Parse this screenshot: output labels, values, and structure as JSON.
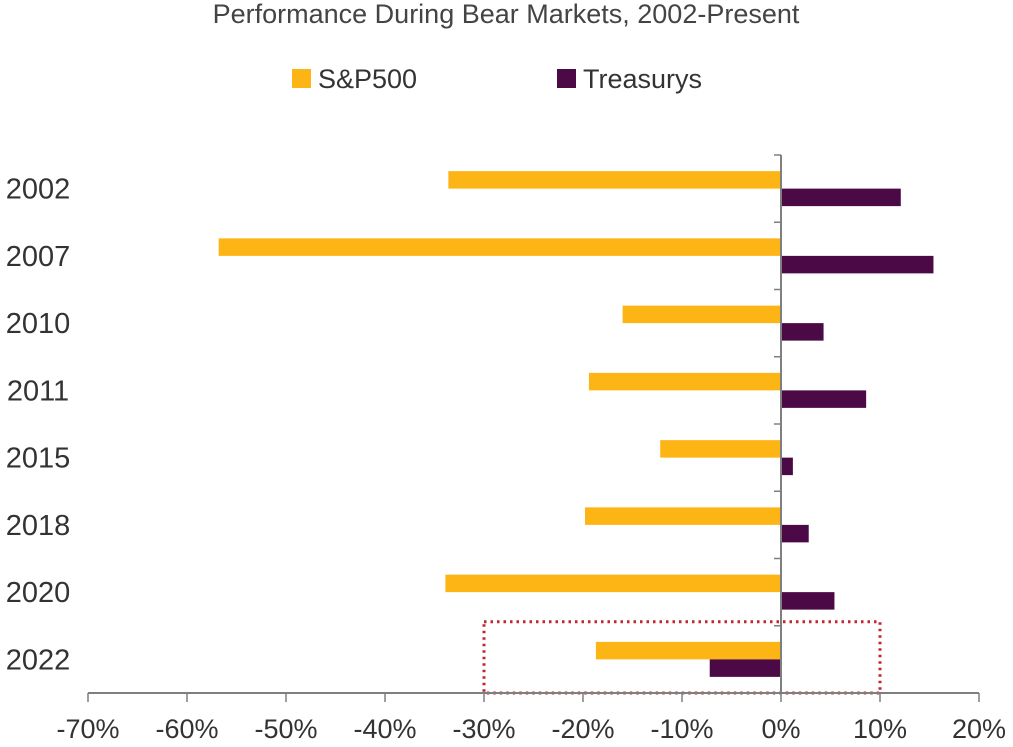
{
  "chart_data": {
    "type": "bar",
    "orientation": "horizontal",
    "title": "Performance During Bear Markets, 2002-Present",
    "categories": [
      "2002",
      "2007",
      "2010",
      "2011",
      "2015",
      "2018",
      "2020",
      "2022"
    ],
    "series": [
      {
        "name": "S&P500",
        "color": "#FDB515",
        "values": [
          -33.6,
          -56.8,
          -16.0,
          -19.4,
          -12.2,
          -19.8,
          -33.9,
          -18.7
        ]
      },
      {
        "name": "Treasurys",
        "color": "#4B0A45",
        "values": [
          12.1,
          15.4,
          4.3,
          8.6,
          1.2,
          2.8,
          5.4,
          -7.2
        ]
      }
    ],
    "x_ticks": [
      "-70%",
      "-60%",
      "-50%",
      "-40%",
      "-30%",
      "-20%",
      "-10%",
      "0%",
      "10%",
      "20%"
    ],
    "xlim": [
      -70,
      20
    ],
    "legend_position": "top",
    "grid": false,
    "highlight_box": {
      "category": "2022",
      "x_range": [
        -30,
        10
      ],
      "color": "#C0272D",
      "style": "dotted"
    }
  }
}
